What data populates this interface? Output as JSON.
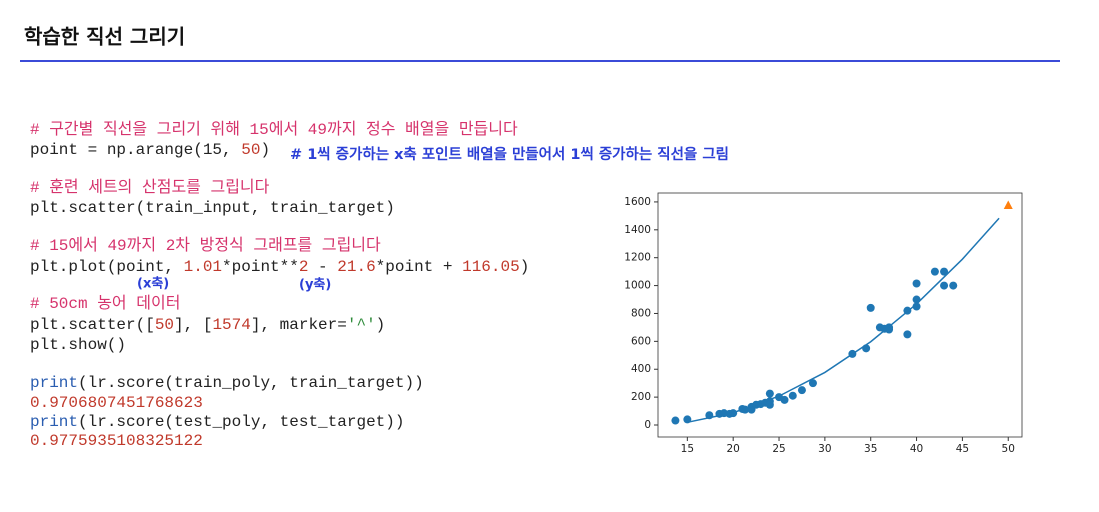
{
  "header": {
    "title": "학습한 직선 그리기"
  },
  "code": {
    "lines": [
      [
        {
          "text": "# 구간별 직선을 그리기 위해 15에서 49까지 정수 배열을 만듭니다",
          "color": "#d6336c"
        }
      ],
      [
        {
          "text": "point = np.arange(15, ",
          "color": "#222222"
        },
        {
          "text": "50",
          "color": "#c0392b"
        },
        {
          "text": ")",
          "color": "#222222"
        }
      ],
      [],
      [
        {
          "text": "# 훈련 세트의 산점도를 그립니다",
          "color": "#d6336c"
        }
      ],
      [
        {
          "text": "plt.scatter(train_input, train_target)",
          "color": "#222222"
        }
      ],
      [],
      [
        {
          "text": "# 15에서 49까지 2차 방정식 그래프를 그립니다",
          "color": "#d6336c"
        }
      ],
      [
        {
          "text": "plt.plot(point, ",
          "color": "#222222"
        },
        {
          "text": "1.01",
          "color": "#c0392b"
        },
        {
          "text": "*point**",
          "color": "#222222"
        },
        {
          "text": "2",
          "color": "#c0392b"
        },
        {
          "text": " - ",
          "color": "#222222"
        },
        {
          "text": "21.6",
          "color": "#c0392b"
        },
        {
          "text": "*point + ",
          "color": "#222222"
        },
        {
          "text": "116.05",
          "color": "#c0392b"
        },
        {
          "text": ")",
          "color": "#222222"
        }
      ],
      [],
      [
        {
          "text": "# 50cm 농어 데이터",
          "color": "#d6336c"
        }
      ],
      [
        {
          "text": "plt.scatter([",
          "color": "#222222"
        },
        {
          "text": "50",
          "color": "#c0392b"
        },
        {
          "text": "], [",
          "color": "#222222"
        },
        {
          "text": "1574",
          "color": "#c0392b"
        },
        {
          "text": "], marker=",
          "color": "#222222"
        },
        {
          "text": "'^'",
          "color": "#2e8b3a"
        },
        {
          "text": ")",
          "color": "#222222"
        }
      ],
      [
        {
          "text": "plt.show()",
          "color": "#222222"
        }
      ],
      [],
      [
        {
          "text": "print",
          "color": "#2a5db0"
        },
        {
          "text": "(lr.score(train_poly, train_target))",
          "color": "#222222"
        }
      ],
      [
        {
          "text": "0.9706807451768623",
          "color": "#c0392b"
        }
      ],
      [
        {
          "text": "print",
          "color": "#2a5db0"
        },
        {
          "text": "(lr.score(test_poly, test_target))",
          "color": "#222222"
        }
      ],
      [
        {
          "text": "0.9775935108325122",
          "color": "#c0392b"
        }
      ]
    ]
  },
  "annotations": {
    "point": "# 1씩 증가하는 x축 포인트 배열을 만들어서 1씩 증가하는 직선을 그림",
    "x_axis": "(x축)",
    "y_axis": "(y축)",
    "color": "#2b3fd6"
  },
  "chart_data": {
    "type": "scatter",
    "xlim": [
      11.8,
      51.5
    ],
    "ylim": [
      -86,
      1664
    ],
    "xticks": [
      15,
      20,
      25,
      30,
      35,
      40,
      45,
      50
    ],
    "yticks": [
      0,
      200,
      400,
      600,
      800,
      1000,
      1200,
      1400,
      1600
    ],
    "series": [
      {
        "type": "scatter",
        "color": "#1f77b4",
        "x": [
          13.7,
          15,
          17.4,
          18.5,
          19,
          19.6,
          20,
          21,
          21.3,
          22,
          22,
          22.5,
          23,
          23.5,
          24,
          24,
          24,
          25,
          25.6,
          26.5,
          27.5,
          28.7,
          33,
          34.5,
          35,
          36,
          36.5,
          37,
          37,
          39,
          39,
          40,
          40,
          40,
          42,
          43,
          43,
          44
        ],
        "values": [
          32,
          40,
          70,
          80,
          85,
          80,
          85,
          115,
          110,
          130,
          110,
          145,
          150,
          160,
          170,
          225,
          145,
          200,
          180,
          210,
          250,
          300,
          510,
          550,
          840,
          700,
          690,
          685,
          700,
          820,
          650,
          900,
          850,
          1015,
          1100,
          1000,
          1100,
          1000
        ]
      },
      {
        "type": "line",
        "color": "#1f77b4",
        "x": [
          15,
          20,
          25,
          30,
          35,
          40,
          45,
          49
        ],
        "values": [
          19.3,
          88.1,
          207.3,
          377.1,
          597.3,
          868.1,
          1189.3,
          1482.7
        ]
      },
      {
        "type": "triangle",
        "color": "#ff7f0e",
        "x": [
          50
        ],
        "values": [
          1574
        ]
      }
    ]
  }
}
